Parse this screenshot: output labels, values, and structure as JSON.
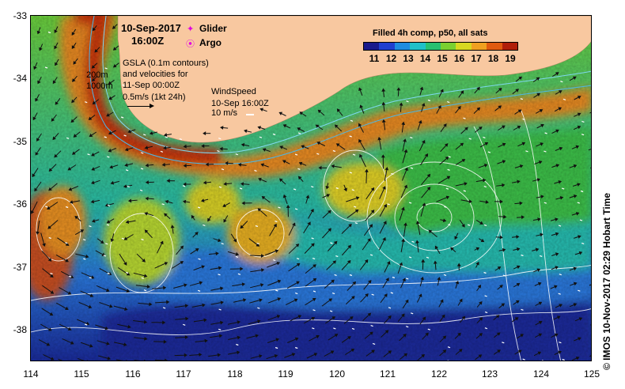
{
  "title": {
    "date": "10-Sep-2017",
    "time": "16:00Z"
  },
  "legend": {
    "glider": "Glider",
    "argo": "Argo",
    "glider_color": "#e000e0",
    "argo_color": "#e000e0"
  },
  "gsla": {
    "line1": "GSLA (0.1m contours)",
    "line2": "and velocities for",
    "line3": "11-Sep 00:00Z",
    "scale_label": "0.5m/s (1kt 24h)",
    "depth_200": "200m",
    "depth_1000": "1000m"
  },
  "wind": {
    "title": "WindSpeed",
    "time": "10-Sep 16:00Z",
    "scale": "10 m/s"
  },
  "colorbar": {
    "title": "Filled 4h comp, p50, all sats",
    "ticks": [
      "11",
      "12",
      "13",
      "14",
      "15",
      "16",
      "17",
      "18",
      "19"
    ],
    "colors": [
      "#1a1a8c",
      "#1f3fd0",
      "#1e8ce0",
      "#20c0c8",
      "#28c070",
      "#7ad030",
      "#d8d820",
      "#f0a020",
      "#e05a10",
      "#b01e0a"
    ]
  },
  "axes": {
    "lat_ticks": [
      "-33",
      "-34",
      "-35",
      "-36",
      "-37",
      "-38"
    ],
    "lon_ticks": [
      "114",
      "115",
      "116",
      "117",
      "118",
      "119",
      "120",
      "121",
      "122",
      "123",
      "124",
      "125"
    ]
  },
  "credit": "© IMOS 10-Nov-2017 02:29 Hobart Time",
  "colors": {
    "land": "#f8c8a0",
    "deep_blue": "#1a2a9a",
    "mid_blue": "#2f7fe0",
    "cyan": "#2cc0b8",
    "green": "#4cc040",
    "yellow": "#e8d828",
    "orange": "#f09020",
    "red": "#c83010"
  }
}
